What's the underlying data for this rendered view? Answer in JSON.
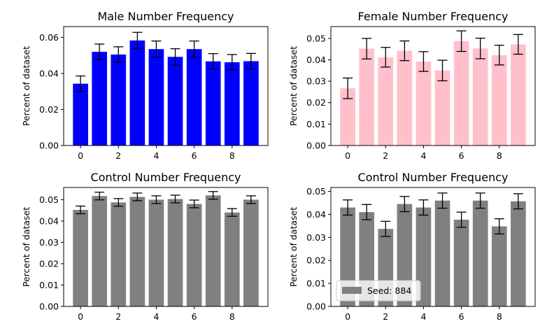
{
  "chart_data": [
    {
      "type": "bar",
      "title": "Male Number Frequency",
      "xlabel": "",
      "ylabel": "Percent of dataset",
      "color": "#0000ff",
      "x": [
        0,
        1,
        2,
        3,
        4,
        5,
        6,
        7,
        8,
        9
      ],
      "values": [
        0.0343,
        0.052,
        0.0505,
        0.0583,
        0.0535,
        0.0492,
        0.0535,
        0.0467,
        0.0462,
        0.0468
      ],
      "errors": [
        0.0043,
        0.0043,
        0.0043,
        0.0045,
        0.0045,
        0.0045,
        0.0045,
        0.0043,
        0.0043,
        0.0043
      ],
      "ylim": [
        0,
        0.066
      ],
      "yticks": [
        0,
        0.02,
        0.04,
        0.06
      ],
      "ytick_labels": [
        "0.00",
        "0.02",
        "0.04",
        "0.06"
      ],
      "xticks": [
        0,
        2,
        4,
        6,
        8
      ],
      "xtick_labels": [
        "0",
        "2",
        "4",
        "6",
        "8"
      ]
    },
    {
      "type": "bar",
      "title": "Female Number Frequency",
      "xlabel": "",
      "ylabel": "Percent of dataset",
      "color": "#ffc0cb",
      "x": [
        0,
        1,
        2,
        3,
        4,
        5,
        6,
        7,
        8,
        9
      ],
      "values": [
        0.0267,
        0.0452,
        0.0412,
        0.0442,
        0.0392,
        0.035,
        0.0487,
        0.0453,
        0.0422,
        0.0472
      ],
      "errors": [
        0.0048,
        0.0048,
        0.0046,
        0.0046,
        0.0046,
        0.0048,
        0.0048,
        0.0048,
        0.0046,
        0.0046
      ],
      "ylim": [
        0,
        0.0555
      ],
      "yticks": [
        0,
        0.01,
        0.02,
        0.03,
        0.04,
        0.05
      ],
      "ytick_labels": [
        "0.00",
        "0.01",
        "0.02",
        "0.03",
        "0.04",
        "0.05"
      ],
      "xticks": [
        0,
        2,
        4,
        6,
        8
      ],
      "xtick_labels": [
        "0",
        "2",
        "4",
        "6",
        "8"
      ]
    },
    {
      "type": "bar",
      "title": "Control Number Frequency",
      "xlabel": "",
      "ylabel": "Percent of dataset",
      "color": "#808080",
      "x": [
        0,
        1,
        2,
        3,
        4,
        5,
        6,
        7,
        8,
        9
      ],
      "values": [
        0.0452,
        0.0517,
        0.0487,
        0.0513,
        0.05,
        0.0503,
        0.048,
        0.052,
        0.044,
        0.05
      ],
      "errors": [
        0.0018,
        0.0018,
        0.0018,
        0.0018,
        0.0018,
        0.0018,
        0.0018,
        0.0018,
        0.0018,
        0.0018
      ],
      "ylim": [
        0,
        0.0557
      ],
      "yticks": [
        0,
        0.01,
        0.02,
        0.03,
        0.04,
        0.05
      ],
      "ytick_labels": [
        "0.00",
        "0.01",
        "0.02",
        "0.03",
        "0.04",
        "0.05"
      ],
      "xticks": [
        0,
        2,
        4,
        6,
        8
      ],
      "xtick_labels": [
        "0",
        "2",
        "4",
        "6",
        "8"
      ]
    },
    {
      "type": "bar",
      "title": "Control Number Frequency",
      "xlabel": "",
      "ylabel": "Percent of dataset",
      "color": "#808080",
      "x": [
        0,
        1,
        2,
        3,
        4,
        5,
        6,
        7,
        8,
        9
      ],
      "values": [
        0.043,
        0.041,
        0.0337,
        0.0445,
        0.043,
        0.046,
        0.0377,
        0.046,
        0.0348,
        0.0457
      ],
      "errors": [
        0.0033,
        0.0033,
        0.0033,
        0.0033,
        0.0033,
        0.0033,
        0.0033,
        0.0033,
        0.0033,
        0.0033
      ],
      "ylim": [
        0,
        0.0517
      ],
      "yticks": [
        0,
        0.01,
        0.02,
        0.03,
        0.04,
        0.05
      ],
      "ytick_labels": [
        "0.00",
        "0.01",
        "0.02",
        "0.03",
        "0.04",
        "0.05"
      ],
      "xticks": [
        0,
        2,
        4,
        6,
        8
      ],
      "xtick_labels": [
        "0",
        "2",
        "4",
        "6",
        "8"
      ],
      "legend": {
        "label": "Seed: 884",
        "position": "lower-left"
      }
    }
  ]
}
